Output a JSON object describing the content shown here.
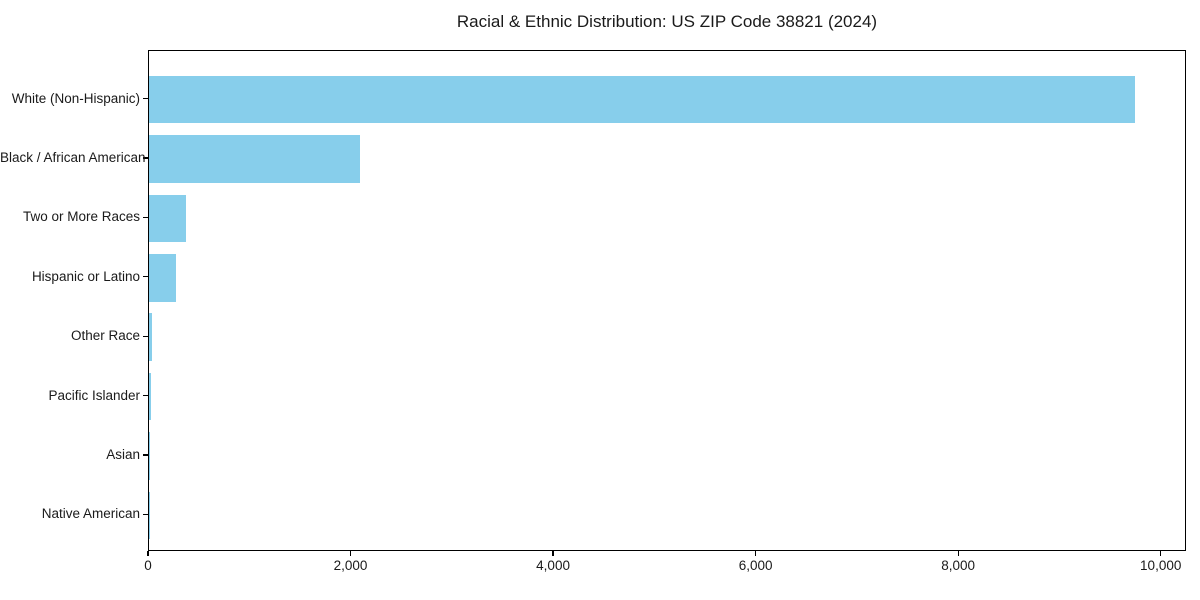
{
  "title": "Racial & Ethnic Distribution: US ZIP Code 38821 (2024)",
  "colors": {
    "bar": "#87CEEB",
    "spine": "#000000",
    "text": "#1a1a1a",
    "background": "#ffffff"
  },
  "chart_data": {
    "type": "bar",
    "orientation": "horizontal",
    "title": "Racial & Ethnic Distribution: US ZIP Code 38821 (2024)",
    "categories": [
      "White (Non-Hispanic)",
      "Black / African American",
      "Two or More Races",
      "Hispanic or Latino",
      "Other Race",
      "Pacific Islander",
      "Asian",
      "Native American"
    ],
    "values": [
      9740,
      2085,
      365,
      265,
      30,
      15,
      8,
      2
    ],
    "xlabel": "",
    "ylabel": "",
    "xlim": [
      0,
      10230
    ],
    "x_ticks": [
      {
        "value": 0,
        "label": "0"
      },
      {
        "value": 2000,
        "label": "2,000"
      },
      {
        "value": 4000,
        "label": "4,000"
      },
      {
        "value": 6000,
        "label": "6,000"
      },
      {
        "value": 8000,
        "label": "8,000"
      },
      {
        "value": 10000,
        "label": "10,000"
      }
    ],
    "grid": false,
    "legend": null,
    "bar_color": "#87CEEB",
    "categories_order": "top-to-bottom descending value"
  }
}
